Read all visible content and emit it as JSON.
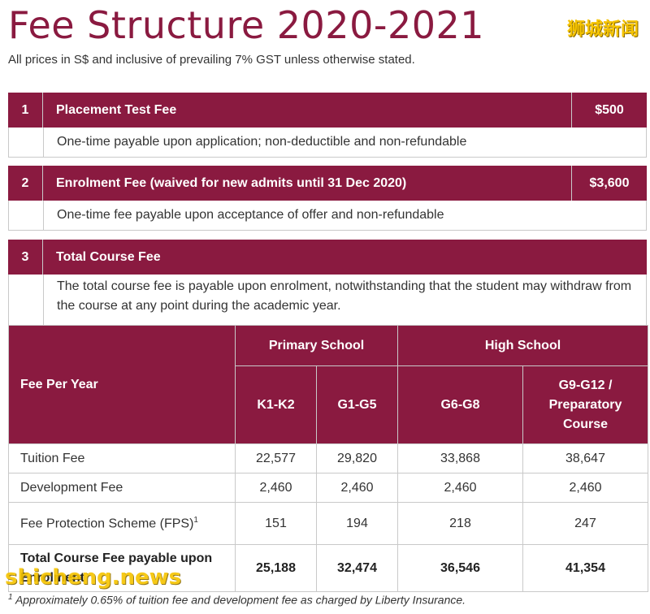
{
  "header": {
    "title": "Fee Structure 2020-2021",
    "watermark": "狮城新闻",
    "subtitle": "All prices in S$ and inclusive of prevailing 7% GST unless otherwise stated."
  },
  "fees": [
    {
      "number": "1",
      "label": "Placement Test Fee",
      "amount": "$500",
      "description": "One-time payable upon application; non-deductible and non-refundable"
    },
    {
      "number": "2",
      "label": "Enrolment Fee (waived for new admits until 31 Dec 2020)",
      "amount": "$3,600",
      "description": "One-time fee payable upon acceptance of offer and non-refundable"
    },
    {
      "number": "3",
      "label": "Total Course Fee",
      "amount": "",
      "description": "The total course fee is payable upon enrolment, notwithstanding that the student may withdraw from the course at any point during the academic year."
    }
  ],
  "table": {
    "corner_label": "Fee Per Year",
    "groups": [
      "Primary School",
      "High School"
    ],
    "columns": [
      "K1-K2",
      "G1-G5",
      "G6-G8",
      "G9-G12 / Preparatory Course"
    ],
    "rows": [
      {
        "label": "Tuition Fee",
        "sup": "",
        "values": [
          "22,577",
          "29,820",
          "33,868",
          "38,647"
        ]
      },
      {
        "label": "Development Fee",
        "sup": "",
        "values": [
          "2,460",
          "2,460",
          "2,460",
          "2,460"
        ]
      },
      {
        "label": "Fee Protection Scheme (FPS)",
        "sup": "1",
        "values": [
          "151",
          "194",
          "218",
          "247"
        ]
      },
      {
        "label": "Total Course Fee payable upon Enrolment",
        "sup": "",
        "values": [
          "25,188",
          "32,474",
          "36,546",
          "41,354"
        ]
      }
    ]
  },
  "footnote": {
    "marker": "1",
    "text": "Approximately 0.65% of tuition fee and development fee as charged by Liberty Insurance."
  },
  "watermark_bottom": "shicheng.news",
  "colors": {
    "accent": "#8a1a40",
    "watermark": "#f6c400"
  }
}
